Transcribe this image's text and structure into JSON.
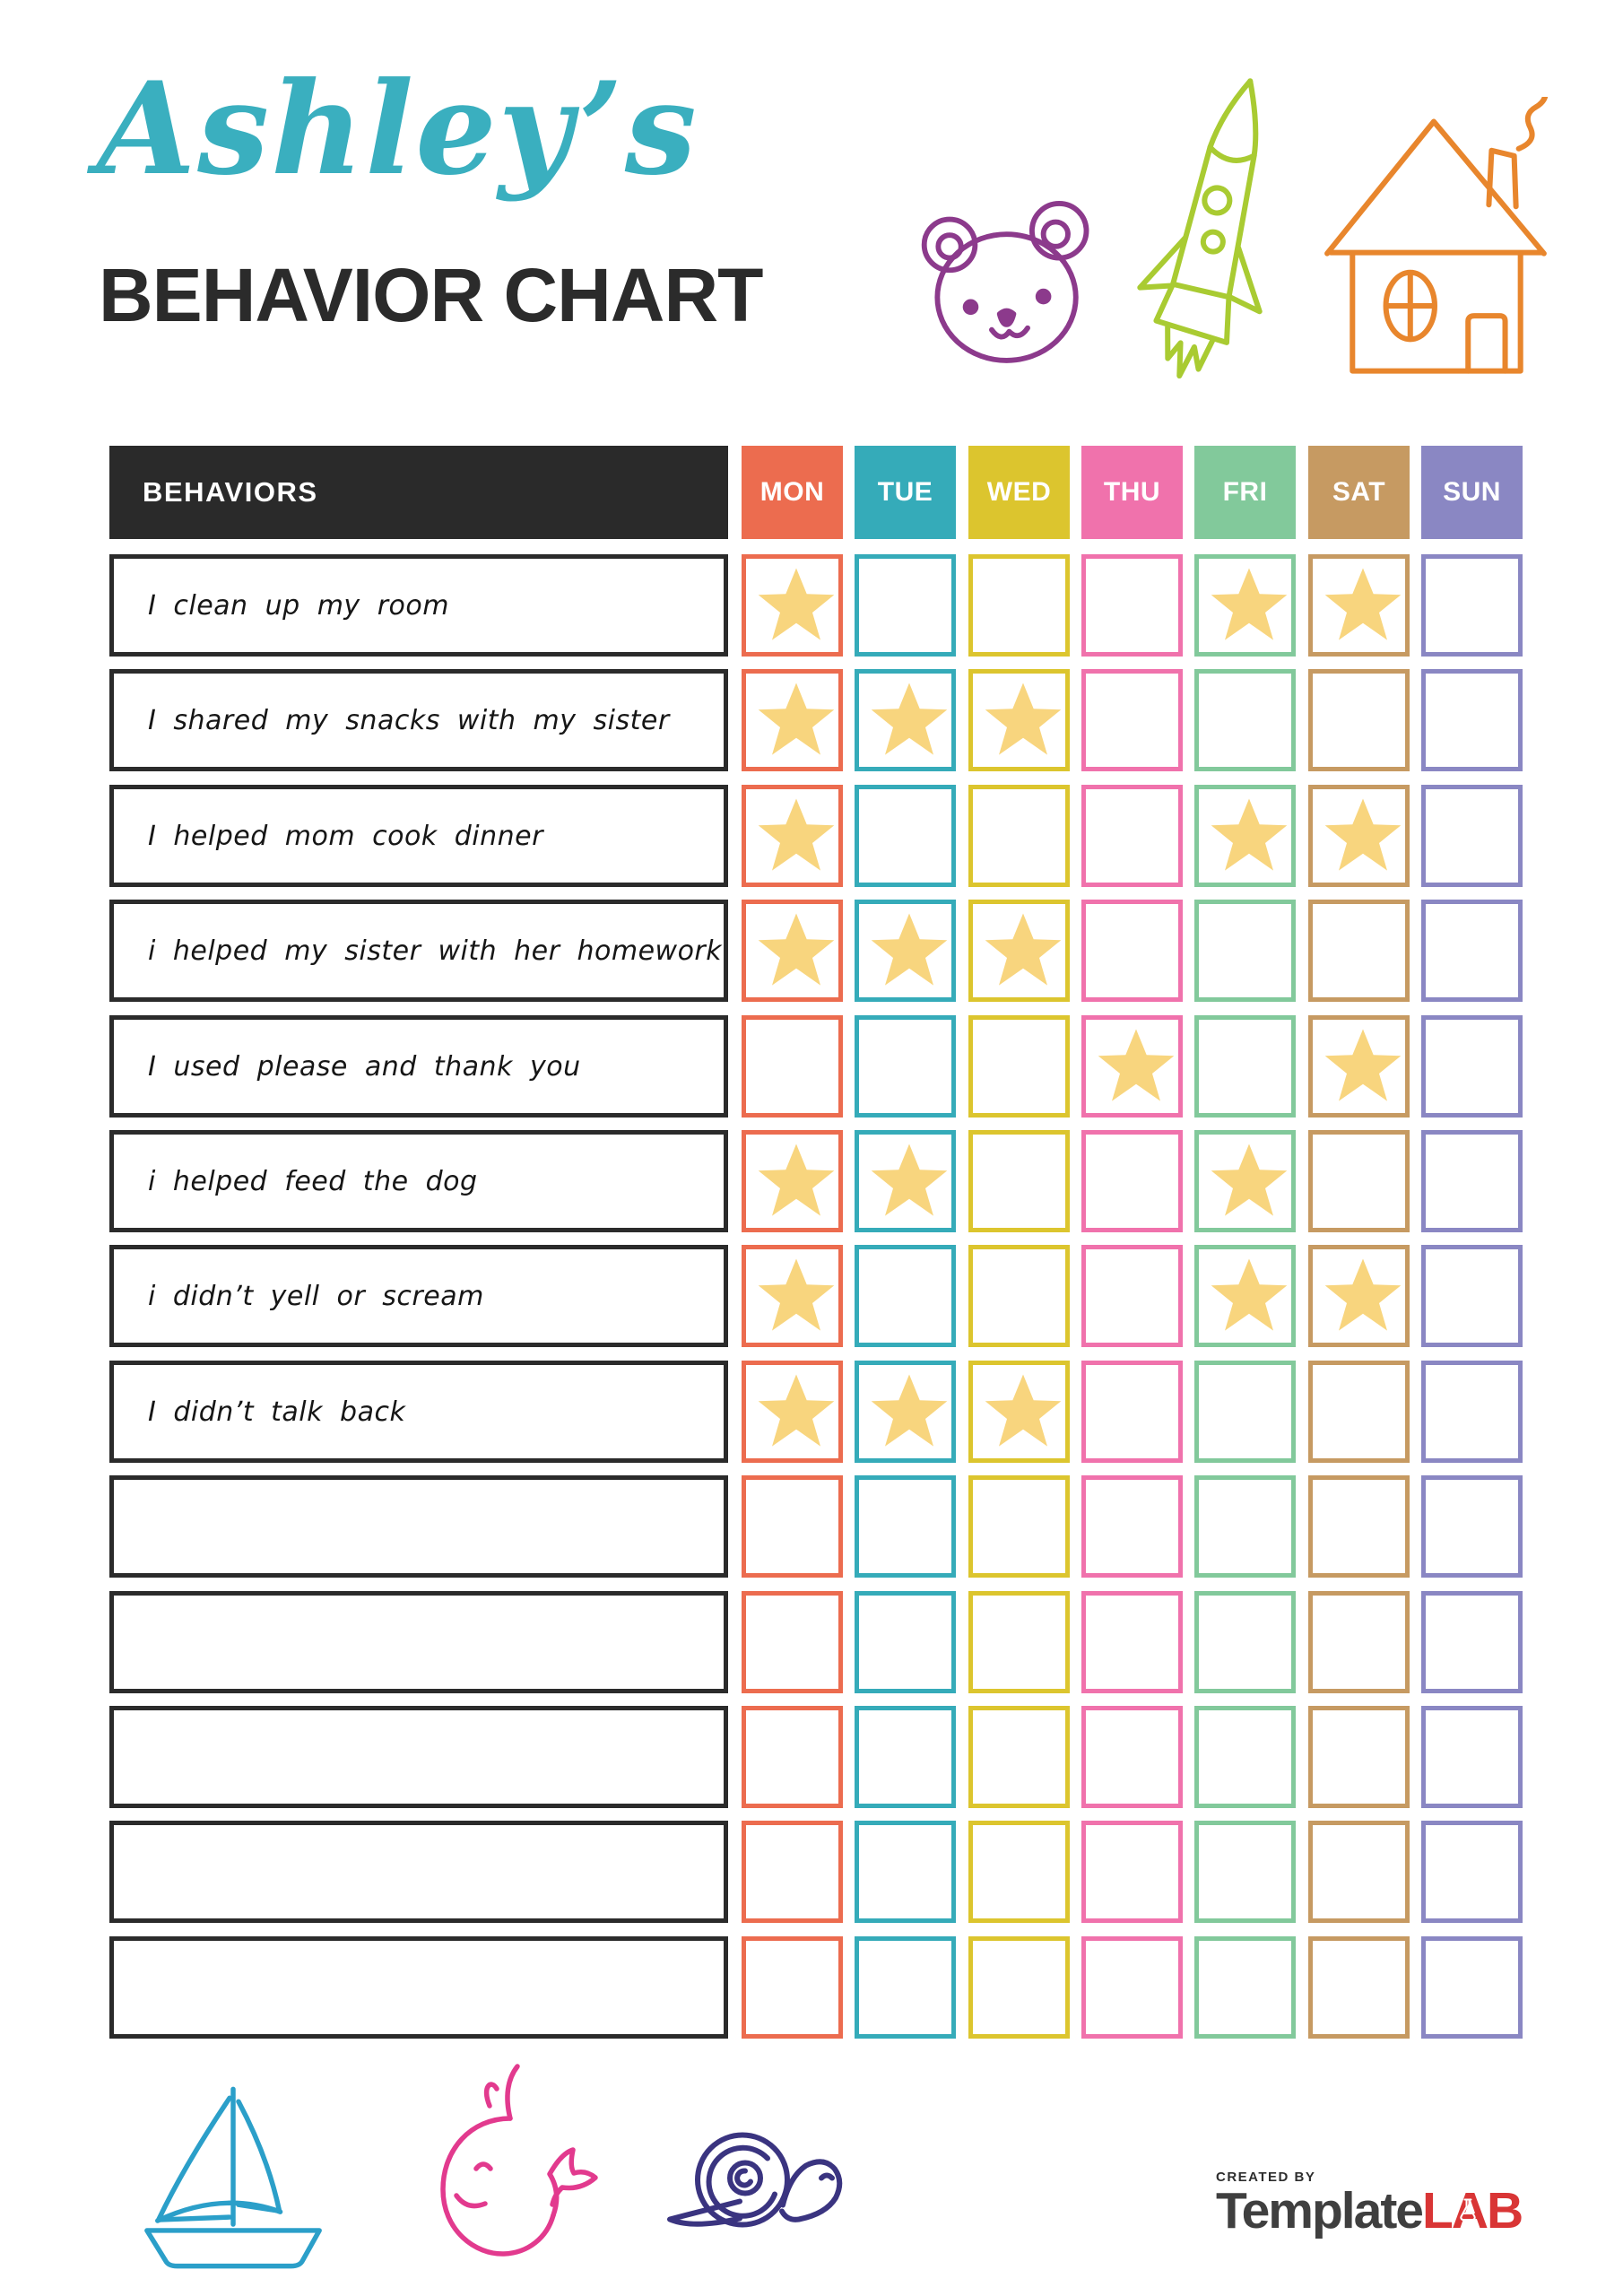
{
  "title": {
    "script": "Ashley’s",
    "script_color": "#3AAFBF",
    "main": "BEHAVIOR CHART",
    "main_color": "#2B2B2B"
  },
  "decor": {
    "colors": {
      "bear": "#8C3A8C",
      "rocket": "#A9CB32",
      "house": "#E8862D",
      "sailboat": "#2B9FC9",
      "whale": "#E23A8E",
      "snail": "#3A3480"
    }
  },
  "table": {
    "behaviors_header": "BEHAVIORS",
    "header_bg": "#2A2A2A",
    "star_color": "#F8D57E",
    "days": [
      {
        "label": "MON",
        "color": "#EC6C4F"
      },
      {
        "label": "TUE",
        "color": "#35ABB9"
      },
      {
        "label": "WED",
        "color": "#DCC52E"
      },
      {
        "label": "THU",
        "color": "#F072AC"
      },
      {
        "label": "FRI",
        "color": "#82C99B"
      },
      {
        "label": "SAT",
        "color": "#C69A62"
      },
      {
        "label": "SUN",
        "color": "#8A87C3"
      }
    ],
    "rows": [
      {
        "behavior": "I clean up my room",
        "stars": [
          "MON",
          "FRI",
          "SAT"
        ]
      },
      {
        "behavior": "I shared my snacks with my sister",
        "stars": [
          "MON",
          "TUE",
          "WED"
        ]
      },
      {
        "behavior": "I helped mom cook dinner",
        "stars": [
          "MON",
          "FRI",
          "SAT"
        ]
      },
      {
        "behavior": "i helped my sister with her homework",
        "stars": [
          "MON",
          "TUE",
          "WED"
        ]
      },
      {
        "behavior": "I used please and thank you",
        "stars": [
          "THU",
          "SAT"
        ]
      },
      {
        "behavior": "i helped feed the dog",
        "stars": [
          "MON",
          "TUE",
          "FRI"
        ]
      },
      {
        "behavior": "i didn’t yell or scream",
        "stars": [
          "MON",
          "FRI",
          "SAT"
        ]
      },
      {
        "behavior": "I didn’t talk back",
        "stars": [
          "MON",
          "TUE",
          "WED"
        ]
      },
      {
        "behavior": "",
        "stars": []
      },
      {
        "behavior": "",
        "stars": []
      },
      {
        "behavior": "",
        "stars": []
      },
      {
        "behavior": "",
        "stars": []
      },
      {
        "behavior": "",
        "stars": []
      }
    ]
  },
  "credit": {
    "created_by": "CREATED BY",
    "brand_dark": "Template",
    "brand_accent": "LAB",
    "accent_color": "#D93535"
  }
}
